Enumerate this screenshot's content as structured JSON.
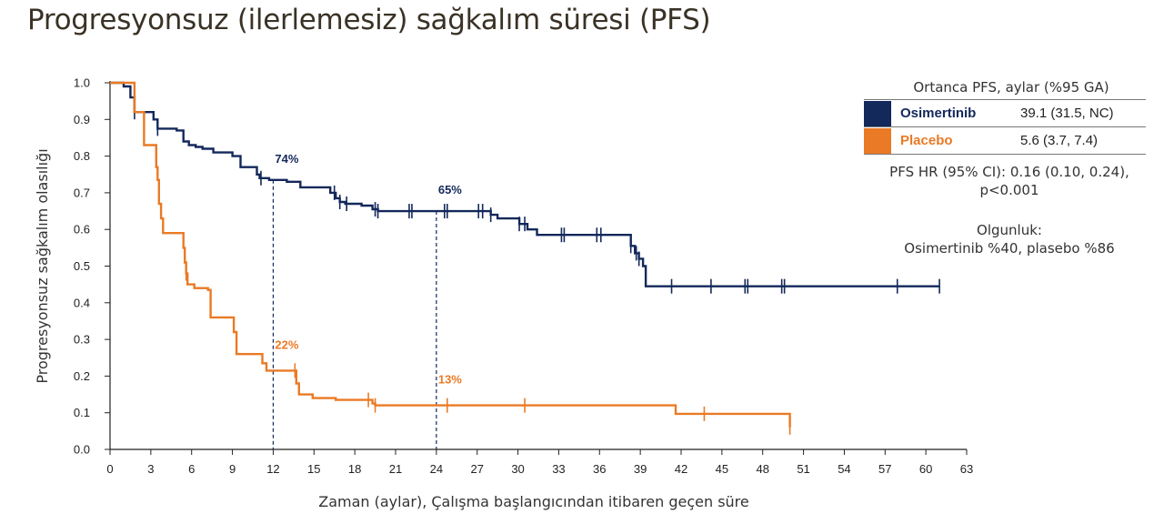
{
  "title": "Progresyonsuz (ilerlemesiz) sağkalım süresi (PFS)",
  "colors": {
    "osimertinib": "#13285b",
    "placebo": "#ea7a25"
  },
  "legend": {
    "header": "Ortanca PFS, aylar (%95 GA)",
    "items": [
      {
        "name": "Osimertinib",
        "value": "39.1 (31.5, NC)",
        "color": "#13285b"
      },
      {
        "name": "Placebo",
        "value": "5.6 (3.7, 7.4)",
        "color": "#ea7a25"
      }
    ],
    "hr_line1": "PFS HR (95% CI): 0.16 (0.10, 0.24),",
    "hr_line2": "p<0.001",
    "maturity_line1": "Olgunluk:",
    "maturity_line2": "Osimertinib %40, plasebo %86"
  },
  "chart_data": {
    "type": "line",
    "title": "Progresyonsuz (ilerlemesiz) sağkalım süresi (PFS)",
    "xlabel": "Zaman (aylar), Çalışma başlangıcından itibaren geçen süre",
    "ylabel": "Progresyonsuz sağkalım olasılığı",
    "xlim": [
      0,
      63
    ],
    "ylim": [
      0,
      1.0
    ],
    "xticks": [
      0,
      3,
      6,
      9,
      12,
      15,
      18,
      21,
      24,
      27,
      30,
      33,
      36,
      39,
      42,
      45,
      48,
      51,
      54,
      57,
      60,
      63
    ],
    "yticks": [
      "0.0",
      "0.1",
      "0.2",
      "0.3",
      "0.4",
      "0.5",
      "0.6",
      "0.7",
      "0.8",
      "0.9",
      "1.0"
    ],
    "grid": false,
    "series": [
      {
        "name": "Osimertinib",
        "color": "#13285b",
        "x": [
          0,
          1.0,
          1.5,
          1.8,
          2.8,
          3.2,
          3.5,
          4.9,
          5.4,
          5.8,
          6.3,
          6.8,
          7.3,
          7.6,
          9.0,
          9.6,
          10.8,
          11.0,
          11.7,
          13.0,
          14.0,
          15.3,
          16.2,
          16.6,
          16.9,
          17.3,
          18.5,
          19.3,
          19.7,
          20.5,
          22.8,
          24.6,
          27.1,
          28.0,
          28.5,
          30.1,
          30.7,
          31.4,
          36.5,
          38.3,
          38.6,
          38.9,
          39.2,
          39.4,
          61.0
        ],
        "y": [
          1.0,
          0.99,
          0.96,
          0.92,
          0.92,
          0.9,
          0.875,
          0.87,
          0.84,
          0.83,
          0.825,
          0.82,
          0.82,
          0.81,
          0.8,
          0.77,
          0.75,
          0.74,
          0.735,
          0.73,
          0.715,
          0.715,
          0.7,
          0.685,
          0.675,
          0.67,
          0.665,
          0.655,
          0.65,
          0.65,
          0.65,
          0.65,
          0.65,
          0.64,
          0.63,
          0.615,
          0.6,
          0.585,
          0.585,
          0.555,
          0.535,
          0.52,
          0.5,
          0.445,
          0.445
        ],
        "censor_x": [
          1.8,
          3.5,
          11.1,
          16.5,
          16.9,
          17.4,
          19.5,
          19.7,
          22.0,
          22.2,
          24.6,
          24.8,
          27.1,
          27.4,
          28.0,
          30.1,
          30.5,
          33.2,
          33.4,
          35.8,
          36.1,
          38.3,
          38.7,
          38.9,
          41.3,
          44.2,
          46.7,
          46.9,
          49.4,
          49.6,
          57.9,
          61.0
        ],
        "label": "74%",
        "label2": "65%"
      },
      {
        "name": "Placebo",
        "color": "#ea7a25",
        "x": [
          0,
          1.8,
          1.8,
          2.5,
          3.4,
          3.5,
          3.6,
          3.75,
          3.9,
          5.4,
          5.5,
          5.6,
          5.7,
          6.2,
          7.2,
          7.4,
          9.1,
          9.3,
          11.2,
          11.5,
          13.7,
          13.9,
          14.9,
          16.6,
          19.3,
          19.5,
          41.6,
          50.0
        ],
        "y": [
          1.0,
          1.0,
          0.92,
          0.83,
          0.77,
          0.735,
          0.67,
          0.63,
          0.59,
          0.55,
          0.51,
          0.48,
          0.45,
          0.44,
          0.435,
          0.36,
          0.32,
          0.26,
          0.235,
          0.215,
          0.18,
          0.15,
          0.14,
          0.135,
          0.125,
          0.12,
          0.097,
          0.06
        ],
        "censor_x": [
          5.6,
          13.6,
          19.0,
          19.5,
          24.8,
          30.5,
          43.7,
          50.0
        ],
        "label": "22%",
        "label2": "13%"
      }
    ],
    "reference_lines_x": [
      12,
      24
    ]
  }
}
